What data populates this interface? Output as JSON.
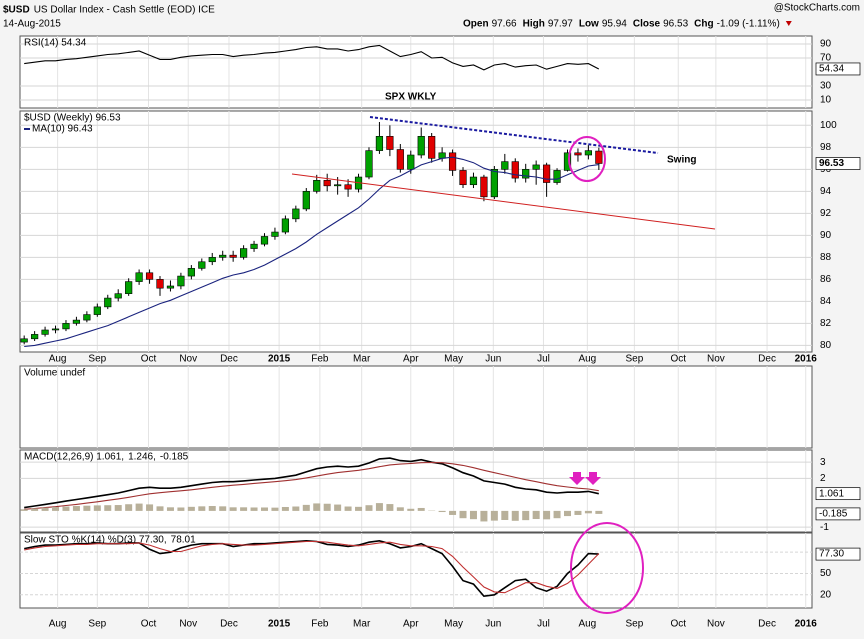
{
  "header": {
    "symbol": "$USD",
    "name": "US Dollar Index - Cash Settle (EOD) ICE",
    "date": "14-Aug-2015",
    "source": "@StockCharts.com",
    "quote": [
      {
        "label": "Open",
        "value": "97.66"
      },
      {
        "label": "High",
        "value": "97.97"
      },
      {
        "label": "Low",
        "value": "95.94"
      },
      {
        "label": "Close",
        "value": "96.53"
      },
      {
        "label": "Chg",
        "value": "-1.09 (-1.11%)"
      }
    ]
  },
  "chart_data": [
    {
      "type": "line",
      "ylim": [
        -1.4,
        101.4
      ],
      "yticks": [
        10,
        30,
        70,
        90
      ],
      "grid": true,
      "series": [
        {
          "name": "RSI(14) 54.34",
          "color": "#000000",
          "values": [
            62,
            64,
            66,
            66,
            68,
            69,
            71,
            73,
            75,
            76,
            78,
            80,
            74,
            68,
            68,
            71,
            73,
            74,
            75,
            75,
            72,
            74,
            75,
            77,
            78,
            80,
            82,
            85,
            86,
            83,
            83,
            80,
            82,
            86,
            88,
            80,
            72,
            75,
            79,
            70,
            71,
            63,
            58,
            60,
            53,
            60,
            62,
            57,
            59,
            60,
            54,
            58,
            62,
            61,
            62,
            54.34
          ]
        }
      ]
    },
    {
      "type": "candlestick",
      "legend": "$USD (Weekly) 96.53",
      "ylim": [
        79.4,
        101.3
      ],
      "yticks": [
        80,
        82,
        84,
        86,
        88,
        90,
        92,
        94,
        96,
        98,
        100
      ],
      "grid": true,
      "xlim": [
        -0.4,
        75.4
      ],
      "xticks": [
        {
          "value": 3.2,
          "label": "Aug"
        },
        {
          "value": 7,
          "label": "Sep"
        },
        {
          "value": 11.9,
          "label": "Oct"
        },
        {
          "value": 15.7,
          "label": "Nov"
        },
        {
          "value": 19.6,
          "label": "Dec"
        },
        {
          "value": 24.4,
          "label": "2015"
        },
        {
          "value": 28.3,
          "label": "Feb"
        },
        {
          "value": 32.3,
          "label": "Mar"
        },
        {
          "value": 37,
          "label": "Apr"
        },
        {
          "value": 41.1,
          "label": "May"
        },
        {
          "value": 44.9,
          "label": "Jun"
        },
        {
          "value": 49.7,
          "label": "Jul"
        },
        {
          "value": 53.9,
          "label": "Aug"
        },
        {
          "value": 58.4,
          "label": "Sep"
        },
        {
          "value": 62.6,
          "label": "Oct"
        },
        {
          "value": 66.2,
          "label": "Nov"
        },
        {
          "value": 71.1,
          "label": "Dec"
        },
        {
          "value": 74.8,
          "label": "2016"
        }
      ],
      "categories": [
        null,
        null,
        null,
        null,
        null,
        null,
        null,
        null,
        null,
        null,
        null,
        null,
        null,
        null,
        null,
        null,
        null,
        null,
        null,
        null,
        null,
        null,
        null,
        null,
        null,
        null,
        null,
        null,
        null,
        null,
        null,
        null,
        null,
        null,
        null,
        null,
        null,
        null,
        null,
        null,
        null,
        null,
        null,
        null,
        null,
        null,
        null,
        null,
        null,
        null,
        null,
        null,
        null,
        null,
        null,
        null
      ],
      "open": [
        80.3,
        80.6,
        81.0,
        81.4,
        81.5,
        82.0,
        82.3,
        82.8,
        83.5,
        84.3,
        84.7,
        85.8,
        86.6,
        86.0,
        85.2,
        85.4,
        86.3,
        87.0,
        87.6,
        88.0,
        88.2,
        88.0,
        88.8,
        89.2,
        89.9,
        90.3,
        91.5,
        92.4,
        94.0,
        95.0,
        94.5,
        94.6,
        94.2,
        95.3,
        97.7,
        99.0,
        97.8,
        96.0,
        97.3,
        99.0,
        97.0,
        97.5,
        95.9,
        94.6,
        95.3,
        93.5,
        96.0,
        96.7,
        95.2,
        96.0,
        96.4,
        94.8,
        95.9,
        97.5,
        97.3,
        97.66
      ],
      "high": [
        80.9,
        81.3,
        81.7,
        81.8,
        82.3,
        82.6,
        83.1,
        83.8,
        84.6,
        85.1,
        86.1,
        86.9,
        86.9,
        86.3,
        85.9,
        86.6,
        87.3,
        87.9,
        88.4,
        88.6,
        88.6,
        89.1,
        89.5,
        90.2,
        90.7,
        91.8,
        92.7,
        94.3,
        95.5,
        95.6,
        95.3,
        95.1,
        95.6,
        98.0,
        100.3,
        100.0,
        98.3,
        97.7,
        99.8,
        99.3,
        98.0,
        97.8,
        96.2,
        95.7,
        95.5,
        96.3,
        97.4,
        97.0,
        96.5,
        96.8,
        96.6,
        96.1,
        97.8,
        97.9,
        98.2,
        97.97
      ],
      "low": [
        80.1,
        80.4,
        80.8,
        81.1,
        81.3,
        81.8,
        82.1,
        82.6,
        83.3,
        84.0,
        84.5,
        85.5,
        85.6,
        84.5,
        84.9,
        85.1,
        86.0,
        86.8,
        87.3,
        87.7,
        87.6,
        87.8,
        88.5,
        89.0,
        89.6,
        90.1,
        91.2,
        92.2,
        93.8,
        94.0,
        93.7,
        93.5,
        93.9,
        95.1,
        97.4,
        97.2,
        95.7,
        95.6,
        97.0,
        96.6,
        96.7,
        95.4,
        94.3,
        94.3,
        93.1,
        93.3,
        95.6,
        94.8,
        94.8,
        94.6,
        93.5,
        94.6,
        95.8,
        96.7,
        96.9,
        95.94
      ],
      "close": [
        80.6,
        81.0,
        81.4,
        81.5,
        82.0,
        82.3,
        82.8,
        83.5,
        84.3,
        84.7,
        85.8,
        86.6,
        86.0,
        85.2,
        85.4,
        86.3,
        87.0,
        87.6,
        88.0,
        88.2,
        88.0,
        88.8,
        89.2,
        89.9,
        90.3,
        91.5,
        92.4,
        94.0,
        95.0,
        94.5,
        94.6,
        94.2,
        95.3,
        97.7,
        99.0,
        97.8,
        96.0,
        97.3,
        99.0,
        97.0,
        97.5,
        95.9,
        94.6,
        95.3,
        93.5,
        96.0,
        96.7,
        95.2,
        96.0,
        96.4,
        94.8,
        95.9,
        97.5,
        97.3,
        97.7,
        96.53
      ],
      "up_color": "#00a000",
      "down_color": "#e00000",
      "series": [
        {
          "name": "MA(10) 96.43",
          "color": "#1a237e",
          "values": [
            79.9,
            80.0,
            80.2,
            80.4,
            80.6,
            80.9,
            81.2,
            81.5,
            81.8,
            82.2,
            82.6,
            83.0,
            83.4,
            83.8,
            84.1,
            84.5,
            84.9,
            85.3,
            85.7,
            86.1,
            86.4,
            86.6,
            86.9,
            87.3,
            87.8,
            88.3,
            88.8,
            89.4,
            90.1,
            90.7,
            91.3,
            91.9,
            92.5,
            93.3,
            94.2,
            95.0,
            95.4,
            95.9,
            96.4,
            96.7,
            97.0,
            97.1,
            96.9,
            96.6,
            96.1,
            95.8,
            95.7,
            95.5,
            95.4,
            95.3,
            95.1,
            95.1,
            95.5,
            95.9,
            96.3,
            96.43
          ]
        }
      ],
      "annotations": [
        "SPX WKLY",
        "Swing"
      ]
    },
    {
      "type": "bar",
      "legend": "Volume undef"
    },
    {
      "type": "line",
      "ylim": [
        -1.3,
        3.75
      ],
      "yticks": [
        -1,
        2,
        3
      ],
      "grid": true,
      "series": [
        {
          "name": "MACD(12,26,9) 1.061,",
          "color": "#000000",
          "values": [
            0.2,
            0.3,
            0.4,
            0.5,
            0.6,
            0.7,
            0.8,
            0.9,
            1.0,
            1.1,
            1.25,
            1.4,
            1.45,
            1.4,
            1.4,
            1.45,
            1.55,
            1.65,
            1.75,
            1.8,
            1.8,
            1.85,
            1.9,
            1.95,
            2.0,
            2.1,
            2.2,
            2.4,
            2.6,
            2.7,
            2.75,
            2.7,
            2.75,
            2.95,
            3.2,
            3.25,
            3.1,
            3.05,
            3.15,
            3.0,
            2.9,
            2.65,
            2.35,
            2.15,
            1.85,
            1.75,
            1.65,
            1.45,
            1.35,
            1.3,
            1.15,
            1.1,
            1.15,
            1.15,
            1.2,
            1.061
          ]
        },
        {
          "name": "1.246,",
          "color": "#a03030",
          "values": [
            0.1,
            0.15,
            0.2,
            0.26,
            0.33,
            0.4,
            0.48,
            0.56,
            0.65,
            0.74,
            0.84,
            0.95,
            1.05,
            1.12,
            1.18,
            1.24,
            1.3,
            1.37,
            1.45,
            1.52,
            1.58,
            1.63,
            1.69,
            1.74,
            1.8,
            1.86,
            1.93,
            2.03,
            2.14,
            2.26,
            2.36,
            2.43,
            2.5,
            2.6,
            2.72,
            2.83,
            2.88,
            2.92,
            2.97,
            2.98,
            2.97,
            2.9,
            2.8,
            2.66,
            2.5,
            2.35,
            2.21,
            2.06,
            1.92,
            1.8,
            1.67,
            1.55,
            1.47,
            1.4,
            1.35,
            1.246
          ]
        },
        {
          "name": "-0.185",
          "color": "#b8b09a",
          "type": "bar",
          "values": [
            0.1,
            0.15,
            0.2,
            0.24,
            0.27,
            0.3,
            0.32,
            0.34,
            0.35,
            0.36,
            0.41,
            0.45,
            0.4,
            0.28,
            0.22,
            0.21,
            0.25,
            0.28,
            0.3,
            0.28,
            0.22,
            0.22,
            0.21,
            0.21,
            0.2,
            0.24,
            0.27,
            0.37,
            0.46,
            0.44,
            0.39,
            0.27,
            0.25,
            0.35,
            0.48,
            0.42,
            0.22,
            0.13,
            0.18,
            0.02,
            -0.07,
            -0.25,
            -0.45,
            -0.51,
            -0.65,
            -0.6,
            -0.56,
            -0.61,
            -0.57,
            -0.5,
            -0.52,
            -0.45,
            -0.32,
            -0.25,
            -0.15,
            -0.185
          ]
        }
      ]
    },
    {
      "type": "line",
      "ylim": [
        1.4,
        107
      ],
      "yticks": [
        20,
        50,
        80
      ],
      "grid": true,
      "end_label": "77.30",
      "series": [
        {
          "name": "Slow STO %K(14) %D(3) 77.30,",
          "color": "#000000",
          "values": [
            85,
            88,
            90,
            90,
            91,
            92,
            92,
            93,
            92,
            92,
            93,
            93,
            84,
            78,
            80,
            86,
            90,
            92,
            92,
            92,
            88,
            90,
            92,
            92,
            93,
            94,
            95,
            96,
            95,
            91,
            90,
            88,
            90,
            94,
            96,
            92,
            86,
            88,
            92,
            85,
            78,
            60,
            40,
            35,
            18,
            20,
            30,
            40,
            42,
            30,
            25,
            32,
            50,
            62,
            78,
            77.3
          ]
        },
        {
          "name": "78.01",
          "color": "#c03030",
          "values": [
            83,
            86,
            88,
            89,
            90,
            91,
            91,
            92,
            92,
            92,
            92,
            93,
            90,
            85,
            81,
            81,
            85,
            89,
            91,
            92,
            91,
            90,
            90,
            91,
            92,
            93,
            94,
            95,
            95,
            94,
            92,
            90,
            89,
            91,
            93,
            94,
            91,
            89,
            89,
            88,
            85,
            74,
            59,
            45,
            31,
            24,
            23,
            30,
            37,
            37,
            32,
            29,
            36,
            48,
            63,
            78.01
          ]
        }
      ]
    }
  ]
}
